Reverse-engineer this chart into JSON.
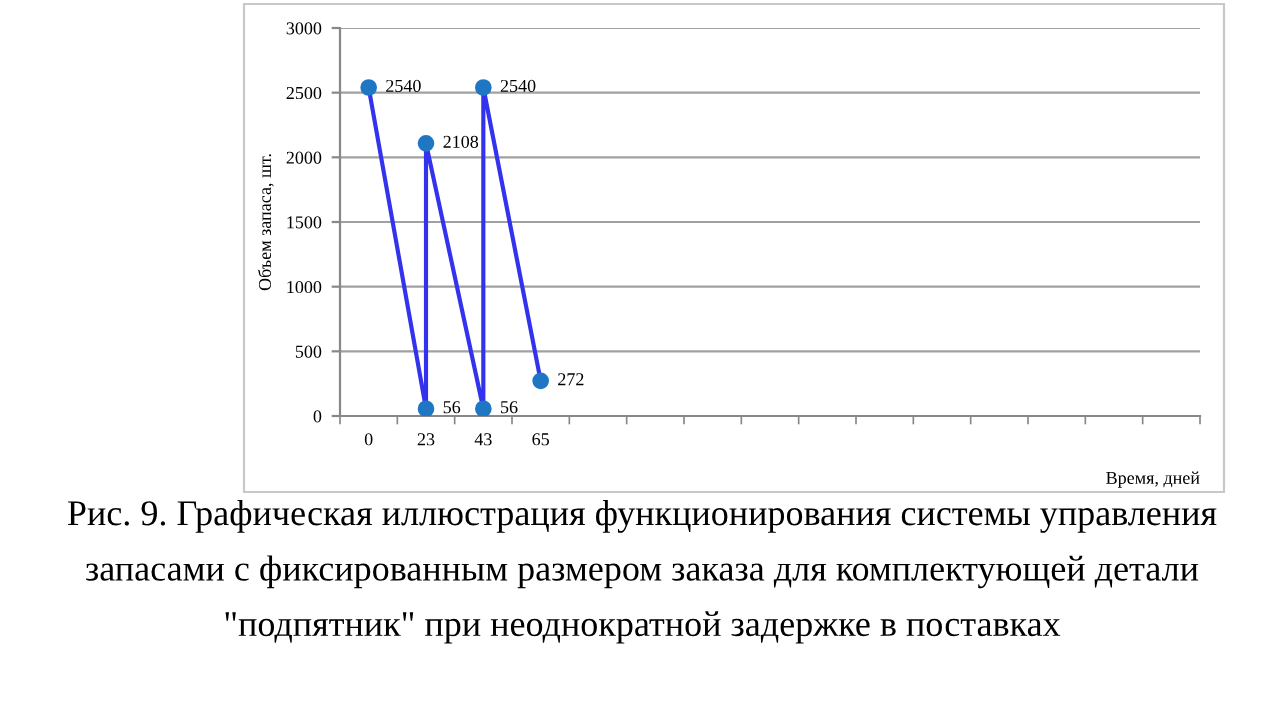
{
  "chart_data": {
    "type": "line",
    "xlabel": "Время, дней",
    "ylabel": "Объем запаса, шт.",
    "categories": [
      "0",
      "23",
      "43",
      "65",
      null,
      null,
      null,
      null,
      null,
      null,
      null,
      null,
      null,
      null,
      null
    ],
    "series": [
      {
        "color": "#3333ee",
        "x": [
          "0",
          "23",
          "23",
          "43",
          "43",
          "65"
        ],
        "values": [
          2540,
          56,
          2108,
          56,
          2540,
          272
        ]
      }
    ],
    "ylim": [
      0,
      3000
    ],
    "yticks": [
      0,
      500,
      1000,
      1500,
      2000,
      2500,
      3000
    ],
    "grid": "y",
    "marker": "circle",
    "line_style": "solid",
    "data_labels": true,
    "annotations": [
      "Рис. 9. Графическая иллюстрация функционирования системы управления запасами с фиксированным размером заказа для комплектующей детали \"подпятник\" при неоднократной задержке в поставках"
    ]
  }
}
